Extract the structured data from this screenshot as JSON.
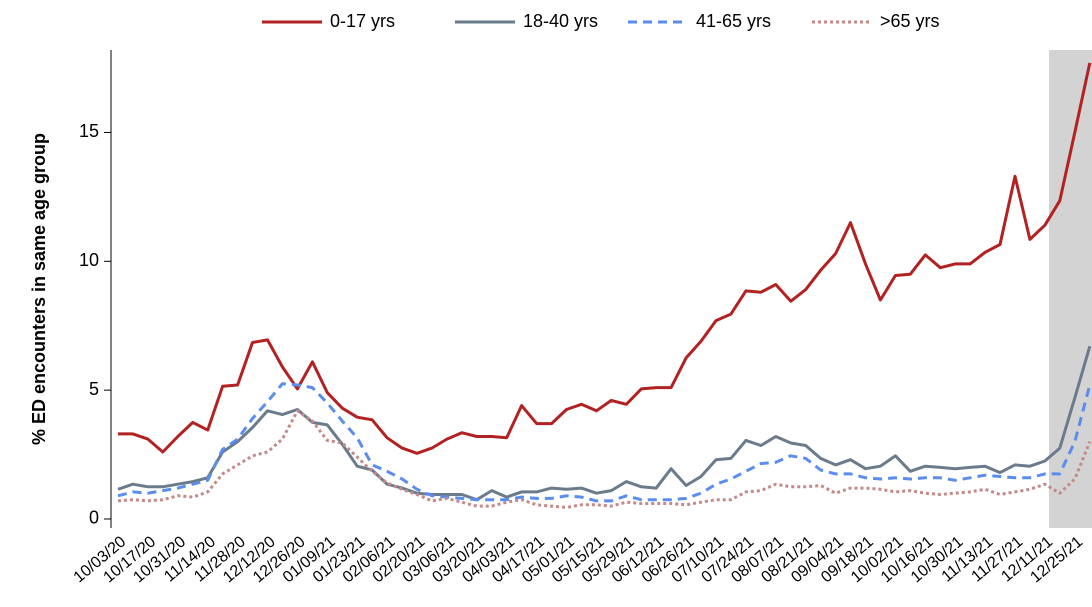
{
  "chart_data": {
    "type": "line",
    "y_label": "% ED encounters in same age group",
    "categories": [
      "10/03/20",
      null,
      "10/17/20",
      null,
      "10/31/20",
      null,
      "11/14/20",
      null,
      "11/28/20",
      null,
      "12/12/20",
      null,
      "12/26/20",
      null,
      "01/09/21",
      null,
      "01/23/21",
      null,
      "02/06/21",
      null,
      "02/20/21",
      null,
      "03/06/21",
      null,
      "03/20/21",
      null,
      "04/03/21",
      null,
      "04/17/21",
      null,
      "05/01/21",
      null,
      "05/15/21",
      null,
      "05/29/21",
      null,
      "06/12/21",
      null,
      "06/26/21",
      null,
      "07/10/21",
      null,
      "07/24/21",
      null,
      "08/07/21",
      null,
      "08/21/21",
      null,
      "09/04/21",
      null,
      "09/18/21",
      null,
      "10/02/21",
      null,
      "10/16/21",
      null,
      "10/30/21",
      null,
      "11/13/21",
      null,
      "11/27/21",
      null,
      "12/11/21",
      null,
      "12/25/21",
      null
    ],
    "series": [
      {
        "name": "0-17 yrs",
        "color": "#b22222",
        "dash": "solid",
        "values": [
          3.3,
          3.3,
          3.1,
          2.6,
          3.2,
          3.75,
          3.45,
          5.15,
          5.2,
          6.85,
          6.95,
          5.9,
          5.05,
          6.1,
          4.9,
          4.3,
          3.95,
          3.85,
          3.15,
          2.75,
          2.55,
          2.75,
          3.1,
          3.35,
          3.2,
          3.2,
          3.15,
          4.4,
          3.7,
          3.7,
          4.25,
          4.45,
          4.2,
          4.6,
          4.45,
          5.05,
          5.1,
          5.1,
          6.25,
          6.9,
          7.7,
          7.95,
          8.85,
          8.8,
          9.1,
          8.45,
          8.9,
          9.65,
          10.3,
          11.5,
          9.9,
          8.5,
          9.45,
          9.5,
          10.25,
          9.75,
          9.9,
          9.9,
          10.35,
          10.65,
          13.3,
          10.85,
          11.4,
          12.35,
          15.0,
          17.7
        ]
      },
      {
        "name": "18-40 yrs",
        "color": "#6b7b8c",
        "dash": "solid",
        "values": [
          1.15,
          1.35,
          1.25,
          1.25,
          1.35,
          1.45,
          1.6,
          2.6,
          3.0,
          3.55,
          4.2,
          4.05,
          4.25,
          3.75,
          3.65,
          2.9,
          2.05,
          1.9,
          1.35,
          1.2,
          1.0,
          0.95,
          0.95,
          0.95,
          0.75,
          1.1,
          0.85,
          1.05,
          1.05,
          1.2,
          1.15,
          1.2,
          1.0,
          1.1,
          1.45,
          1.25,
          1.2,
          1.95,
          1.3,
          1.65,
          2.3,
          2.35,
          3.05,
          2.85,
          3.2,
          2.95,
          2.85,
          2.35,
          2.1,
          2.3,
          1.95,
          2.05,
          2.45,
          1.85,
          2.05,
          2.0,
          1.95,
          2.0,
          2.05,
          1.8,
          2.1,
          2.05,
          2.25,
          2.75,
          4.7,
          6.7
        ]
      },
      {
        "name": "41-65 yrs",
        "color": "#5b8def",
        "dash": "dashed",
        "values": [
          0.9,
          1.05,
          1.0,
          1.1,
          1.2,
          1.35,
          1.5,
          2.7,
          3.1,
          3.9,
          4.55,
          5.25,
          5.2,
          5.1,
          4.5,
          3.8,
          3.15,
          2.1,
          1.85,
          1.55,
          1.15,
          0.9,
          0.85,
          0.8,
          0.75,
          0.75,
          0.75,
          0.85,
          0.8,
          0.8,
          0.9,
          0.85,
          0.7,
          0.7,
          0.9,
          0.75,
          0.75,
          0.75,
          0.8,
          1.0,
          1.35,
          1.55,
          1.85,
          2.15,
          2.2,
          2.45,
          2.35,
          1.9,
          1.75,
          1.75,
          1.6,
          1.55,
          1.6,
          1.55,
          1.6,
          1.6,
          1.5,
          1.6,
          1.7,
          1.65,
          1.6,
          1.6,
          1.75,
          1.75,
          3.0,
          5.2
        ]
      },
      {
        "name": ">65 yrs",
        "color": "#c48a8a",
        "dash": "dotted",
        "values": [
          0.7,
          0.75,
          0.7,
          0.75,
          0.9,
          0.85,
          1.05,
          1.75,
          2.1,
          2.45,
          2.6,
          3.1,
          4.2,
          3.8,
          3.05,
          2.95,
          2.4,
          1.85,
          1.4,
          1.15,
          0.95,
          0.7,
          0.8,
          0.65,
          0.5,
          0.5,
          0.65,
          0.75,
          0.55,
          0.5,
          0.45,
          0.55,
          0.55,
          0.5,
          0.65,
          0.6,
          0.6,
          0.6,
          0.55,
          0.65,
          0.75,
          0.75,
          1.05,
          1.1,
          1.35,
          1.25,
          1.25,
          1.3,
          1.0,
          1.2,
          1.2,
          1.15,
          1.05,
          1.1,
          1.0,
          0.95,
          1.0,
          1.05,
          1.15,
          0.95,
          1.05,
          1.15,
          1.35,
          1.0,
          1.55,
          3.0
        ]
      }
    ],
    "ylim": [
      -0.35,
      18.2
    ],
    "yticks": [
      0,
      5,
      10,
      15
    ],
    "grid": false
  }
}
